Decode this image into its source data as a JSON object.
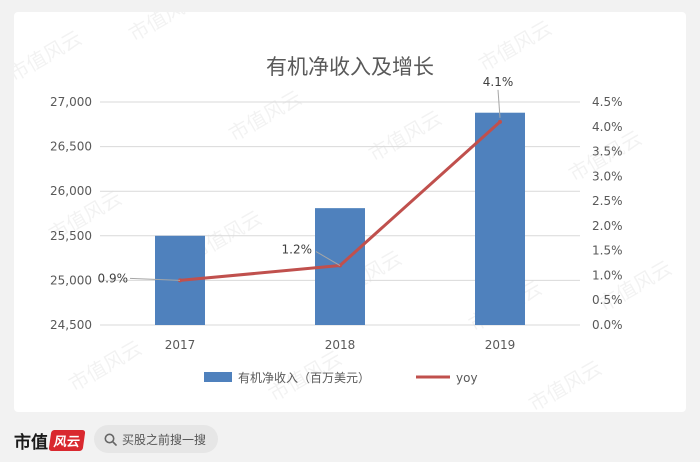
{
  "chart_data": {
    "type": "bar+line",
    "title": "有机净收入及增长",
    "categories": [
      "2017",
      "2018",
      "2019"
    ],
    "series": [
      {
        "name": "有机净收入（百万美元）",
        "type": "bar",
        "axis": "left",
        "color": "#4f81bd",
        "values": [
          25500,
          25810,
          26880
        ]
      },
      {
        "name": "yoy",
        "type": "line",
        "axis": "right",
        "color": "#c0504d",
        "values": [
          0.9,
          1.2,
          4.1
        ],
        "labels": [
          "0.9%",
          "1.2%",
          "4.1%"
        ]
      }
    ],
    "y_left": {
      "ylim": [
        24500,
        27000
      ],
      "ticks": [
        "24,500",
        "25,000",
        "25,500",
        "26,000",
        "26,500",
        "27,000"
      ]
    },
    "y_right": {
      "ylim": [
        0,
        4.5
      ],
      "ticks": [
        "0.0%",
        "0.5%",
        "1.0%",
        "1.5%",
        "2.0%",
        "2.5%",
        "3.0%",
        "3.5%",
        "4.0%",
        "4.5%"
      ]
    },
    "grid": true,
    "legend": "bottom"
  },
  "watermark": "市值风云",
  "footer": {
    "brand": "市值",
    "brand_mark": "风云",
    "search_placeholder": "买股之前搜一搜",
    "search_icon": "search-icon"
  }
}
